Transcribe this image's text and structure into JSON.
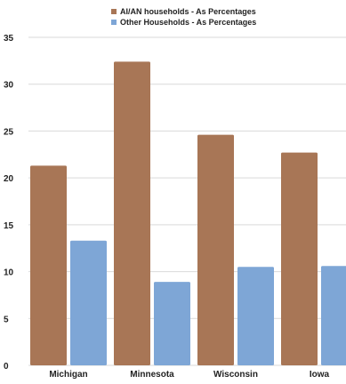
{
  "chart_data": {
    "type": "bar",
    "categories": [
      "Michigan",
      "Minnesota",
      "Wisconsin",
      "Iowa"
    ],
    "series": [
      {
        "name": "AI/AN households - As Percentages",
        "color": "#a87656",
        "values": [
          21.3,
          32.4,
          24.6,
          22.7
        ]
      },
      {
        "name": "Other Households - As Percentages",
        "color": "#7ea6d6",
        "values": [
          13.3,
          8.9,
          10.5,
          10.6
        ]
      }
    ],
    "ylim": [
      0,
      35
    ],
    "yticks": [
      "0",
      "5",
      "10",
      "15",
      "20",
      "25",
      "30",
      "35"
    ],
    "grid": true,
    "legend_position": "top-center",
    "title": "",
    "xlabel": "",
    "ylabel": ""
  }
}
